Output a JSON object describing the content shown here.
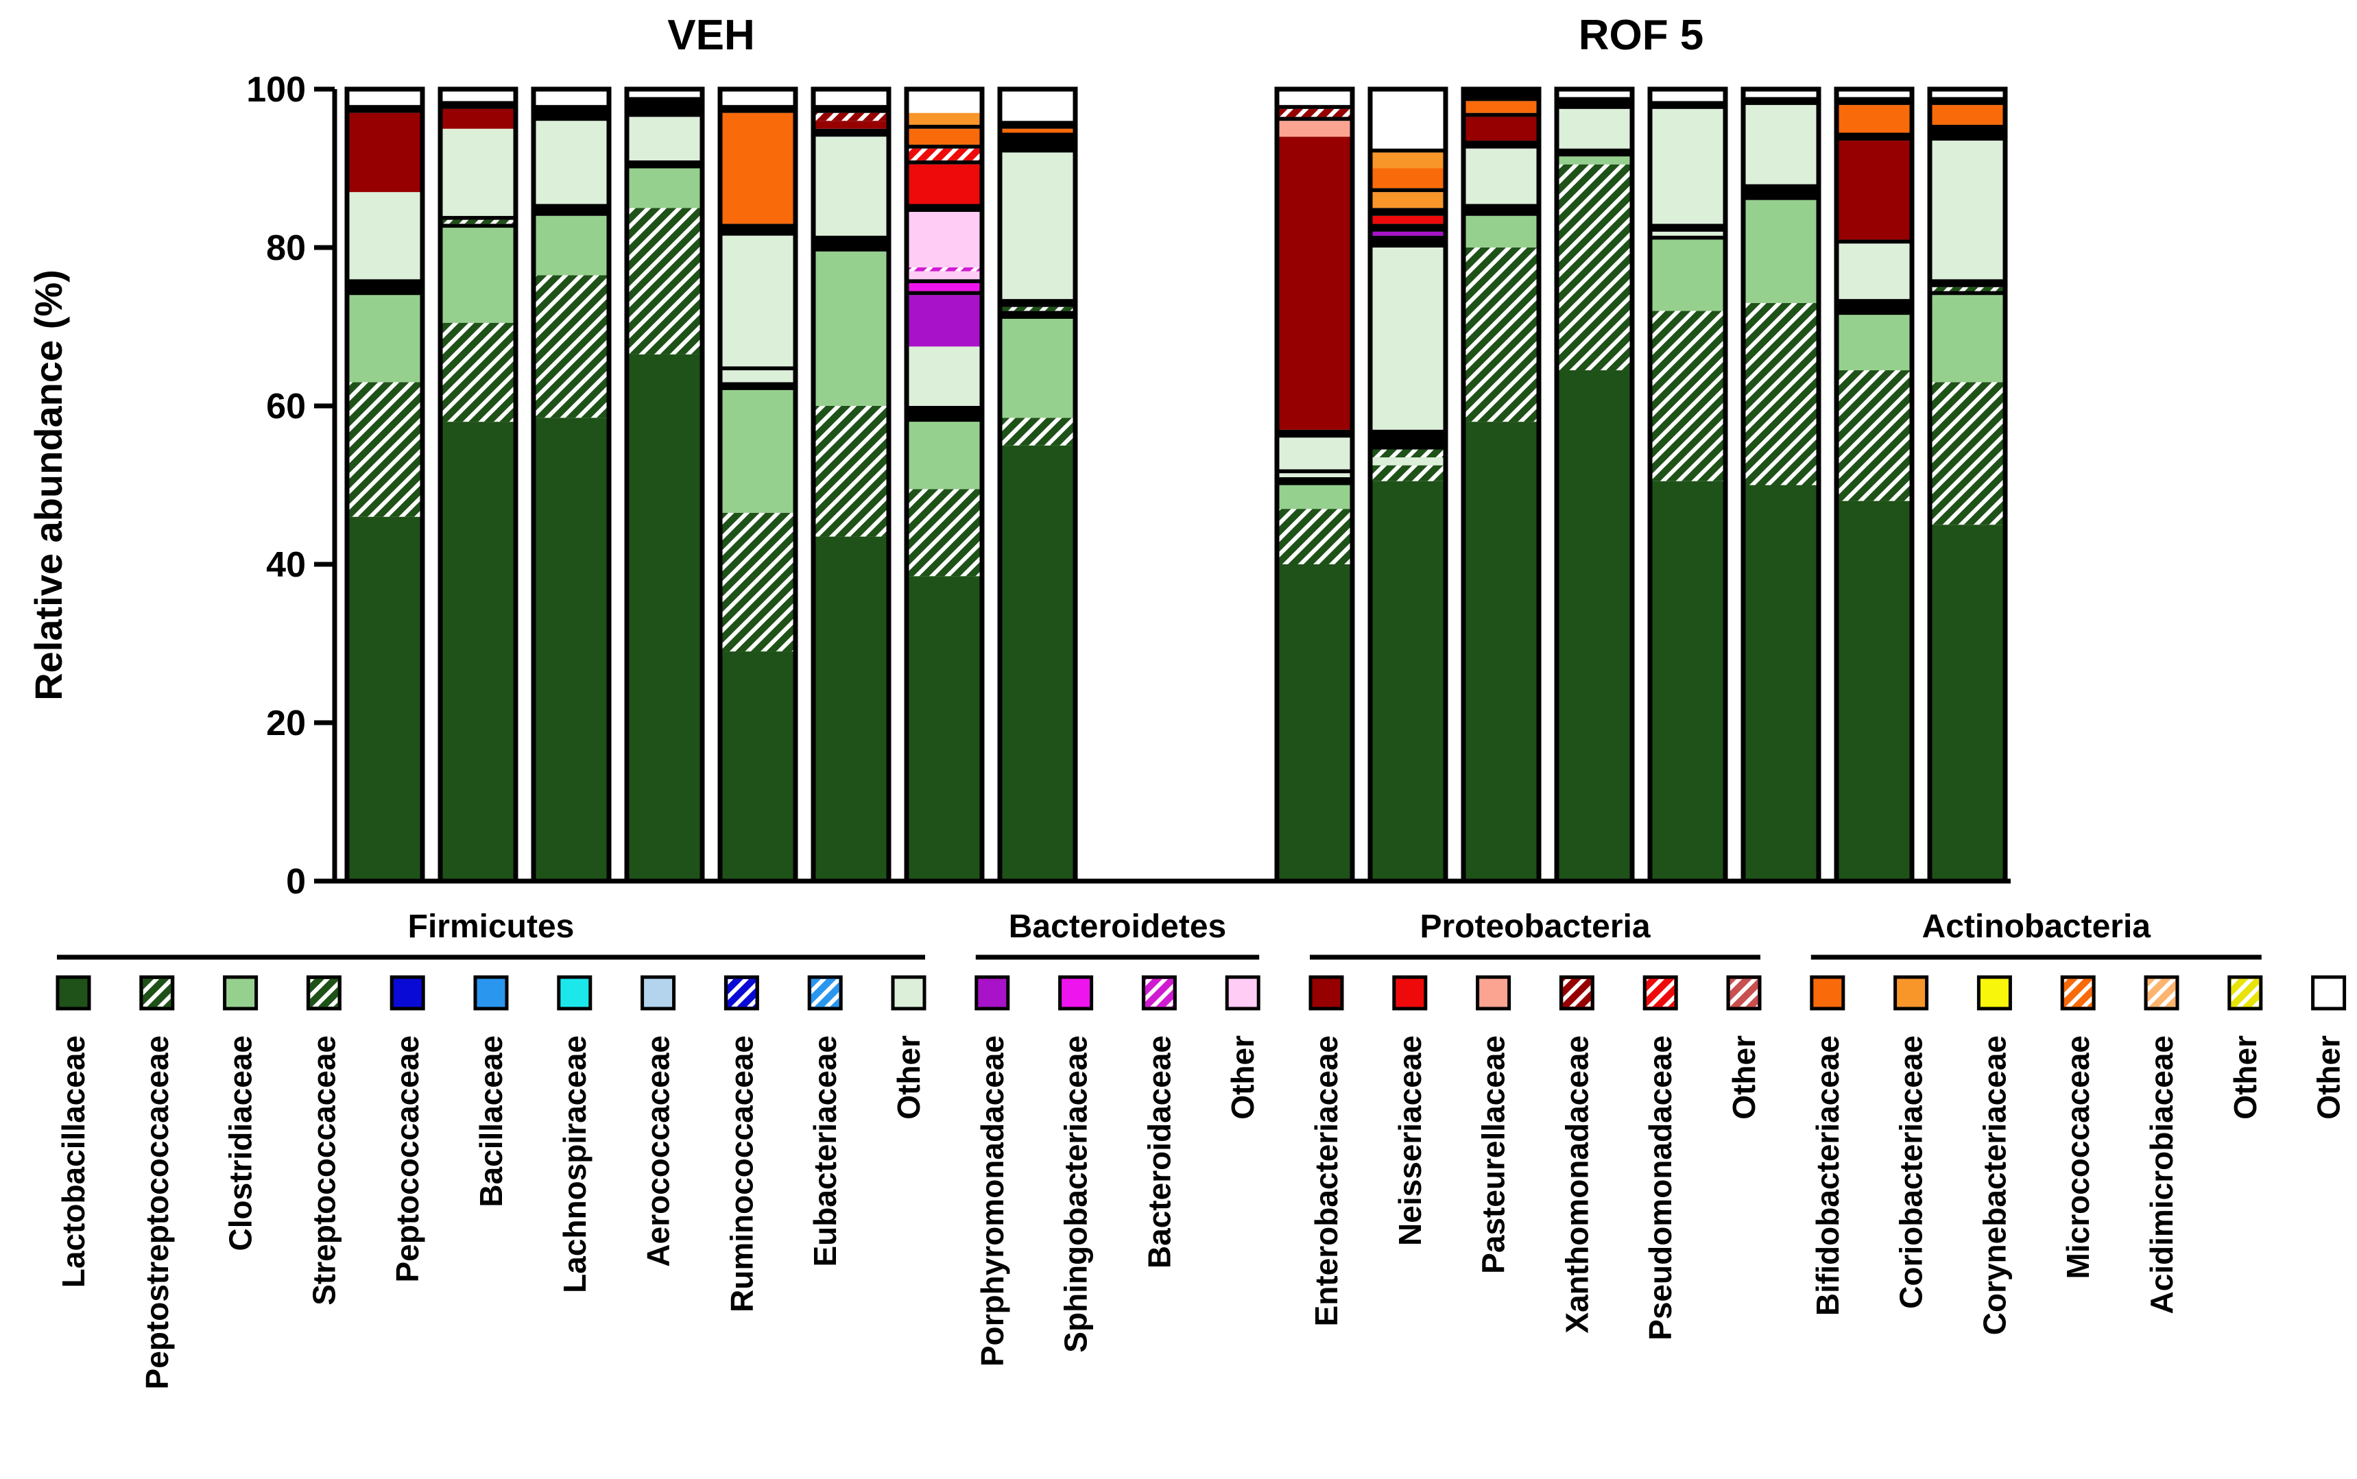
{
  "chart_data": {
    "type": "bar",
    "stacked": true,
    "ylabel": "Relative abundance  (%)",
    "ylim": [
      0,
      100
    ],
    "yticks": [
      "0",
      "20",
      "40",
      "60",
      "80",
      "100"
    ],
    "groups": [
      {
        "title": "VEH",
        "n_samples": 8
      },
      {
        "title": "ROF 5",
        "n_samples": 8
      }
    ],
    "phyla": [
      {
        "name": "Firmicutes",
        "families": [
          {
            "key": "lacto",
            "label": "Lactobacillaceae",
            "color": "#1e5218",
            "hatch": false
          },
          {
            "key": "pepto",
            "label": "Peptostreptococcaceae",
            "color": "#1e5218",
            "hatch": true
          },
          {
            "key": "clost",
            "label": "Clostridiaceae",
            "color": "#96d08e",
            "hatch": false
          },
          {
            "key": "strep",
            "label": "Streptococcaceae",
            "color": "#1e5218",
            "hatch": true
          },
          {
            "key": "peptoc",
            "label": "Peptococcaceae",
            "color": "#0a0ad6",
            "hatch": false
          },
          {
            "key": "bacil",
            "label": "Bacillaceae",
            "color": "#2a96ee",
            "hatch": false
          },
          {
            "key": "lachno",
            "label": "Lachnospiraceae",
            "color": "#1ce8ec",
            "hatch": false
          },
          {
            "key": "aero",
            "label": "Aerococcaceae",
            "color": "#b4d4ee",
            "hatch": false
          },
          {
            "key": "rumino",
            "label": "Ruminococcaceae",
            "color": "#0a0ad6",
            "hatch": true
          },
          {
            "key": "eubact",
            "label": "Eubacteriaceae",
            "color": "#2a96ee",
            "hatch": true
          },
          {
            "key": "firm_other",
            "label": "Other",
            "color": "#dcefd9",
            "hatch": false
          }
        ]
      },
      {
        "name": "Bacteroidetes",
        "families": [
          {
            "key": "porphy",
            "label": "Porphyromonadaceae",
            "color": "#a812c8",
            "hatch": false
          },
          {
            "key": "sphingo",
            "label": "Sphingobacteriaceae",
            "color": "#ee14ee",
            "hatch": false
          },
          {
            "key": "bactero",
            "label": "Bacteroidaceae",
            "color": "#d01cd0",
            "hatch": true
          },
          {
            "key": "bact_other",
            "label": "Other",
            "color": "#ffccf6",
            "hatch": false
          }
        ]
      },
      {
        "name": "Proteobacteria",
        "families": [
          {
            "key": "entero",
            "label": "Enterobacteriaceae",
            "color": "#960000",
            "hatch": false
          },
          {
            "key": "neiss",
            "label": "Neisseriaceae",
            "color": "#ee0a0a",
            "hatch": false
          },
          {
            "key": "paste",
            "label": "Pasteurellaceae",
            "color": "#fca492",
            "hatch": false
          },
          {
            "key": "xantho",
            "label": "Xanthomonadaceae",
            "color": "#960000",
            "hatch": true
          },
          {
            "key": "pseudo",
            "label": "Pseudomonadaceae",
            "color": "#ee0a0a",
            "hatch": true
          },
          {
            "key": "prot_other",
            "label": "Other",
            "color": "#c85050",
            "hatch": true
          }
        ]
      },
      {
        "name": "Actinobacteria",
        "families": [
          {
            "key": "bifido",
            "label": "Bifidobacteriaceae",
            "color": "#f86a0a",
            "hatch": false
          },
          {
            "key": "corio",
            "label": "Coriobacteriaceae",
            "color": "#f8962a",
            "hatch": false
          },
          {
            "key": "coryne",
            "label": "Corynebacteriaceae",
            "color": "#f8f60a",
            "hatch": false
          },
          {
            "key": "micro",
            "label": "Micrococcaceae",
            "color": "#f86a0a",
            "hatch": true
          },
          {
            "key": "acidi",
            "label": "Acidimicrobiaceae",
            "color": "#fcb46e",
            "hatch": true
          },
          {
            "key": "act_other",
            "label": "Other",
            "color": "#e8e40a",
            "hatch": true
          }
        ]
      }
    ],
    "other_entry": {
      "key": "other",
      "label": "Other",
      "color": "#ffffff",
      "hatch": false
    },
    "divider_color": "#000000",
    "samples": [
      {
        "group": "VEH",
        "segments": [
          [
            "lacto",
            46
          ],
          [
            "pepto",
            17
          ],
          [
            "clost",
            11
          ],
          [
            "divider",
            2
          ],
          [
            "firm_other",
            11
          ],
          [
            "entero",
            10
          ],
          [
            "divider",
            1
          ],
          [
            "other",
            2
          ]
        ]
      },
      {
        "group": "VEH",
        "segments": [
          [
            "lacto",
            58
          ],
          [
            "pepto",
            12.5
          ],
          [
            "clost",
            12
          ],
          [
            "divider",
            0.5
          ],
          [
            "strep",
            0.5
          ],
          [
            "divider",
            0.5
          ],
          [
            "firm_other",
            11
          ],
          [
            "entero",
            2.5
          ],
          [
            "divider",
            1
          ],
          [
            "other",
            1.5
          ]
        ]
      },
      {
        "group": "VEH",
        "segments": [
          [
            "lacto",
            58.5
          ],
          [
            "pepto",
            18
          ],
          [
            "clost",
            7.5
          ],
          [
            "divider",
            1.5
          ],
          [
            "firm_other",
            10.5
          ],
          [
            "divider",
            2
          ],
          [
            "other",
            2
          ]
        ]
      },
      {
        "group": "VEH",
        "segments": [
          [
            "lacto",
            66.5
          ],
          [
            "pepto",
            18.5
          ],
          [
            "clost",
            5
          ],
          [
            "divider",
            1
          ],
          [
            "firm_other",
            5.5
          ],
          [
            "divider",
            2.5
          ],
          [
            "other",
            1
          ]
        ]
      },
      {
        "group": "VEH",
        "segments": [
          [
            "lacto",
            29
          ],
          [
            "pepto",
            17.5
          ],
          [
            "clost",
            15.5
          ],
          [
            "divider",
            1
          ],
          [
            "firm_other",
            1.5
          ],
          [
            "divider",
            0.5
          ],
          [
            "firm_other",
            16.5
          ],
          [
            "divider",
            1.5
          ],
          [
            "bifido",
            14
          ],
          [
            "divider",
            1
          ],
          [
            "other",
            2
          ]
        ]
      },
      {
        "group": "VEH",
        "segments": [
          [
            "lacto",
            43.5
          ],
          [
            "pepto",
            16.5
          ],
          [
            "clost",
            19.5
          ],
          [
            "divider",
            2
          ],
          [
            "firm_other",
            12.5
          ],
          [
            "divider",
            1
          ],
          [
            "entero",
            1
          ],
          [
            "xantho",
            1
          ],
          [
            "divider",
            1
          ],
          [
            "other",
            2
          ]
        ]
      },
      {
        "group": "VEH",
        "segments": [
          [
            "lacto",
            38.5
          ],
          [
            "pepto",
            11
          ],
          [
            "clost",
            8.5
          ],
          [
            "divider",
            2
          ],
          [
            "firm_other",
            7.5
          ],
          [
            "porphy",
            6.5
          ],
          [
            "divider",
            0.5
          ],
          [
            "sphingo",
            1
          ],
          [
            "divider",
            0.5
          ],
          [
            "bact_other",
            1
          ],
          [
            "bactero",
            0.5
          ],
          [
            "bact_other",
            7
          ],
          [
            "divider",
            1
          ],
          [
            "neiss",
            5
          ],
          [
            "divider",
            0.5
          ],
          [
            "pseudo",
            1.5
          ],
          [
            "divider",
            0.5
          ],
          [
            "bifido",
            2
          ],
          [
            "divider",
            0.5
          ],
          [
            "corio",
            1.5
          ],
          [
            "other",
            3.5
          ]
        ]
      },
      {
        "group": "VEH",
        "segments": [
          [
            "lacto",
            55
          ],
          [
            "pepto",
            3.5
          ],
          [
            "clost",
            12.5
          ],
          [
            "divider",
            1
          ],
          [
            "strep",
            0.5
          ],
          [
            "divider",
            1
          ],
          [
            "firm_other",
            18.5
          ],
          [
            "divider",
            2.5
          ],
          [
            "bifido",
            0.5
          ],
          [
            "divider",
            1
          ],
          [
            "other",
            1
          ]
        ]
      },
      {
        "group": "ROF 5",
        "segments": [
          [
            "lacto",
            40
          ],
          [
            "pepto",
            7
          ],
          [
            "clost",
            3
          ],
          [
            "divider",
            1
          ],
          [
            "firm_other",
            0.5
          ],
          [
            "divider",
            0.5
          ],
          [
            "firm_other",
            4
          ],
          [
            "divider",
            1
          ],
          [
            "entero",
            37
          ],
          [
            "paste",
            2
          ],
          [
            "divider",
            0.5
          ],
          [
            "xantho",
            1
          ],
          [
            "divider",
            0.5
          ],
          [
            "other",
            1
          ]
        ]
      },
      {
        "group": "ROF 5",
        "segments": [
          [
            "lacto",
            50.5
          ],
          [
            "pepto",
            2
          ],
          [
            "firm_other",
            1
          ],
          [
            "strep",
            1
          ],
          [
            "divider",
            2.5
          ],
          [
            "firm_other",
            23
          ],
          [
            "divider",
            1.5
          ],
          [
            "porphy",
            0.5
          ],
          [
            "divider",
            1
          ],
          [
            "neiss",
            1
          ],
          [
            "divider",
            1
          ],
          [
            "corio",
            2
          ],
          [
            "divider",
            0.5
          ],
          [
            "bifido",
            2.5
          ],
          [
            "corio",
            2
          ],
          [
            "divider",
            0.5
          ],
          [
            "other",
            8
          ]
        ]
      },
      {
        "group": "ROF 5",
        "segments": [
          [
            "lacto",
            58
          ],
          [
            "pepto",
            22
          ],
          [
            "clost",
            4
          ],
          [
            "divider",
            1.5
          ],
          [
            "firm_other",
            7
          ],
          [
            "divider",
            1
          ],
          [
            "entero",
            3
          ],
          [
            "divider",
            0.5
          ],
          [
            "bifido",
            1.5
          ],
          [
            "divider",
            1.5
          ]
        ]
      },
      {
        "group": "ROF 5",
        "segments": [
          [
            "lacto",
            64.5
          ],
          [
            "pepto",
            26
          ],
          [
            "clost",
            1
          ],
          [
            "divider",
            1
          ],
          [
            "firm_other",
            5
          ],
          [
            "divider",
            1.5
          ],
          [
            "other",
            1
          ]
        ]
      },
      {
        "group": "ROF 5",
        "segments": [
          [
            "lacto",
            50.5
          ],
          [
            "pepto",
            21.5
          ],
          [
            "clost",
            9
          ],
          [
            "divider",
            0.5
          ],
          [
            "firm_other",
            0.5
          ],
          [
            "divider",
            1
          ],
          [
            "firm_other",
            14.5
          ],
          [
            "divider",
            1
          ],
          [
            "other",
            1.5
          ]
        ]
      },
      {
        "group": "ROF 5",
        "segments": [
          [
            "lacto",
            50
          ],
          [
            "pepto",
            23
          ],
          [
            "clost",
            13
          ],
          [
            "divider",
            2
          ],
          [
            "firm_other",
            10
          ],
          [
            "divider",
            1
          ],
          [
            "other",
            1
          ]
        ]
      },
      {
        "group": "ROF 5",
        "segments": [
          [
            "lacto",
            48
          ],
          [
            "pepto",
            16.5
          ],
          [
            "clost",
            7
          ],
          [
            "divider",
            2
          ],
          [
            "firm_other",
            7
          ],
          [
            "divider",
            0.5
          ],
          [
            "entero",
            12.5
          ],
          [
            "divider",
            1
          ],
          [
            "bifido",
            3.5
          ],
          [
            "divider",
            1
          ],
          [
            "other",
            1
          ]
        ]
      },
      {
        "group": "ROF 5",
        "segments": [
          [
            "lacto",
            45
          ],
          [
            "pepto",
            18
          ],
          [
            "clost",
            11
          ],
          [
            "divider",
            0.5
          ],
          [
            "strep",
            0.5
          ],
          [
            "divider",
            1
          ],
          [
            "firm_other",
            17.5
          ],
          [
            "divider",
            2
          ],
          [
            "bifido",
            2.5
          ],
          [
            "divider",
            1
          ],
          [
            "other",
            1
          ]
        ]
      }
    ]
  }
}
